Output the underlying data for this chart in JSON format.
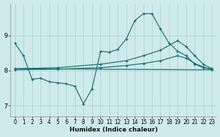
{
  "xlabel": "Humidex (Indice chaleur)",
  "background_color": "#ceeaea",
  "grid_color": "#aad4d4",
  "line_color": "#1a7070",
  "xlim": [
    -0.5,
    23.5
  ],
  "ylim": [
    6.7,
    9.9
  ],
  "yticks": [
    7,
    8,
    9
  ],
  "xticks": [
    0,
    1,
    2,
    3,
    4,
    5,
    6,
    7,
    8,
    9,
    10,
    11,
    12,
    13,
    14,
    15,
    16,
    17,
    18,
    19,
    20,
    21,
    22,
    23
  ],
  "series": [
    {
      "x": [
        0,
        1,
        2,
        3,
        4,
        5,
        6,
        7,
        8,
        9,
        10,
        11,
        12,
        13,
        14,
        15,
        16,
        17,
        18,
        19,
        20,
        21,
        22,
        23
      ],
      "y": [
        8.78,
        8.42,
        7.75,
        7.78,
        7.68,
        7.65,
        7.62,
        7.55,
        7.05,
        7.48,
        8.55,
        8.52,
        8.6,
        8.9,
        9.42,
        9.62,
        9.62,
        9.18,
        8.78,
        8.55,
        8.42,
        8.18,
        8.08,
        8.05
      ],
      "marker": true
    },
    {
      "x": [
        0,
        5,
        10,
        13,
        15,
        17,
        19,
        20,
        21,
        22,
        23
      ],
      "y": [
        8.05,
        8.08,
        8.18,
        8.28,
        8.42,
        8.58,
        8.85,
        8.68,
        8.42,
        8.18,
        8.05
      ],
      "marker": true
    },
    {
      "x": [
        0,
        5,
        10,
        13,
        15,
        17,
        19,
        20,
        21,
        22,
        23
      ],
      "y": [
        8.02,
        8.04,
        8.08,
        8.14,
        8.2,
        8.28,
        8.42,
        8.35,
        8.2,
        8.1,
        8.02
      ],
      "marker": true
    },
    {
      "x": [
        0,
        23
      ],
      "y": [
        8.05,
        8.02
      ],
      "marker": false
    }
  ]
}
